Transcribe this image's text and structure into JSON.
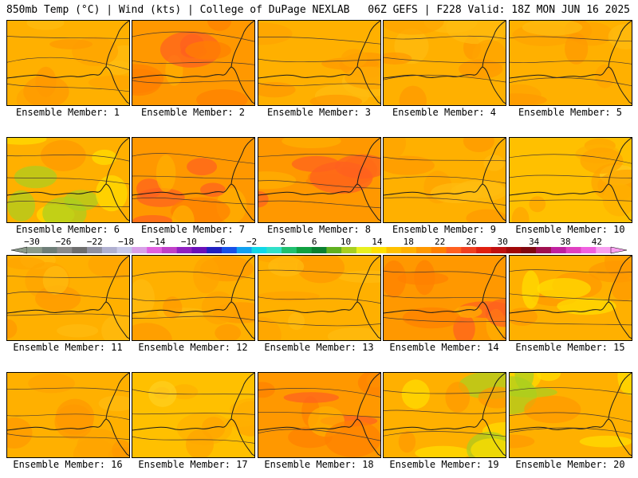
{
  "header": {
    "left": "850mb Temp (°C) | Wind (kts) | College of DuPage NEXLAB",
    "right": "06Z GEFS | F228 Valid: 18Z MON JUN 16 2025"
  },
  "colorbar": {
    "labels": [
      "−30",
      "−26",
      "−22",
      "−18",
      "−14",
      "−10",
      "−6",
      "−2",
      "2",
      "6",
      "10",
      "14",
      "18",
      "22",
      "26",
      "30",
      "34",
      "38",
      "42"
    ],
    "colors": [
      "#8a9a8a",
      "#6e7e78",
      "#8a8a8a",
      "#6e6e6e",
      "#9090a0",
      "#b0b0d0",
      "#c8c8e8",
      "#d8a0e8",
      "#e060e0",
      "#c040c8",
      "#9020c0",
      "#6a10b8",
      "#2020c0",
      "#1850e8",
      "#10a0f0",
      "#10d8e8",
      "#30e0c8",
      "#20c070",
      "#10a040",
      "#0a8030",
      "#60b020",
      "#a8d020",
      "#e8f020",
      "#ffe000",
      "#ffc000",
      "#ffb000",
      "#ff9800",
      "#ff8000",
      "#ff6020",
      "#f04020",
      "#e02010",
      "#c01010",
      "#a00808",
      "#800810",
      "#a01050",
      "#c020a0",
      "#e040c0",
      "#f060e0",
      "#f8a0f0"
    ]
  },
  "member_label_prefix": "Ensemble Member: ",
  "members": [
    {
      "caption": "Ensemble Member: 1",
      "palette": "warm"
    },
    {
      "caption": "Ensemble Member: 2",
      "palette": "hot"
    },
    {
      "caption": "Ensemble Member: 3",
      "palette": "warm"
    },
    {
      "caption": "Ensemble Member: 4",
      "palette": "warm"
    },
    {
      "caption": "Ensemble Member: 5",
      "palette": "warm"
    },
    {
      "caption": "Ensemble Member: 6",
      "palette": "green"
    },
    {
      "caption": "Ensemble Member: 7",
      "palette": "hot"
    },
    {
      "caption": "Ensemble Member: 8",
      "palette": "hot"
    },
    {
      "caption": "Ensemble Member: 9",
      "palette": "warm"
    },
    {
      "caption": "Ensemble Member: 10",
      "palette": "cool"
    },
    {
      "caption": "Ensemble Member: 11",
      "palette": "warm"
    },
    {
      "caption": "Ensemble Member: 12",
      "palette": "warm"
    },
    {
      "caption": "Ensemble Member: 13",
      "palette": "warm"
    },
    {
      "caption": "Ensemble Member: 14",
      "palette": "hot"
    },
    {
      "caption": "Ensemble Member: 15",
      "palette": "green"
    },
    {
      "caption": "Ensemble Member: 16",
      "palette": "warm"
    },
    {
      "caption": "Ensemble Member: 17",
      "palette": "cool"
    },
    {
      "caption": "Ensemble Member: 18",
      "palette": "hot"
    },
    {
      "caption": "Ensemble Member: 19",
      "palette": "green"
    },
    {
      "caption": "Ensemble Member: 20",
      "palette": "green"
    }
  ]
}
